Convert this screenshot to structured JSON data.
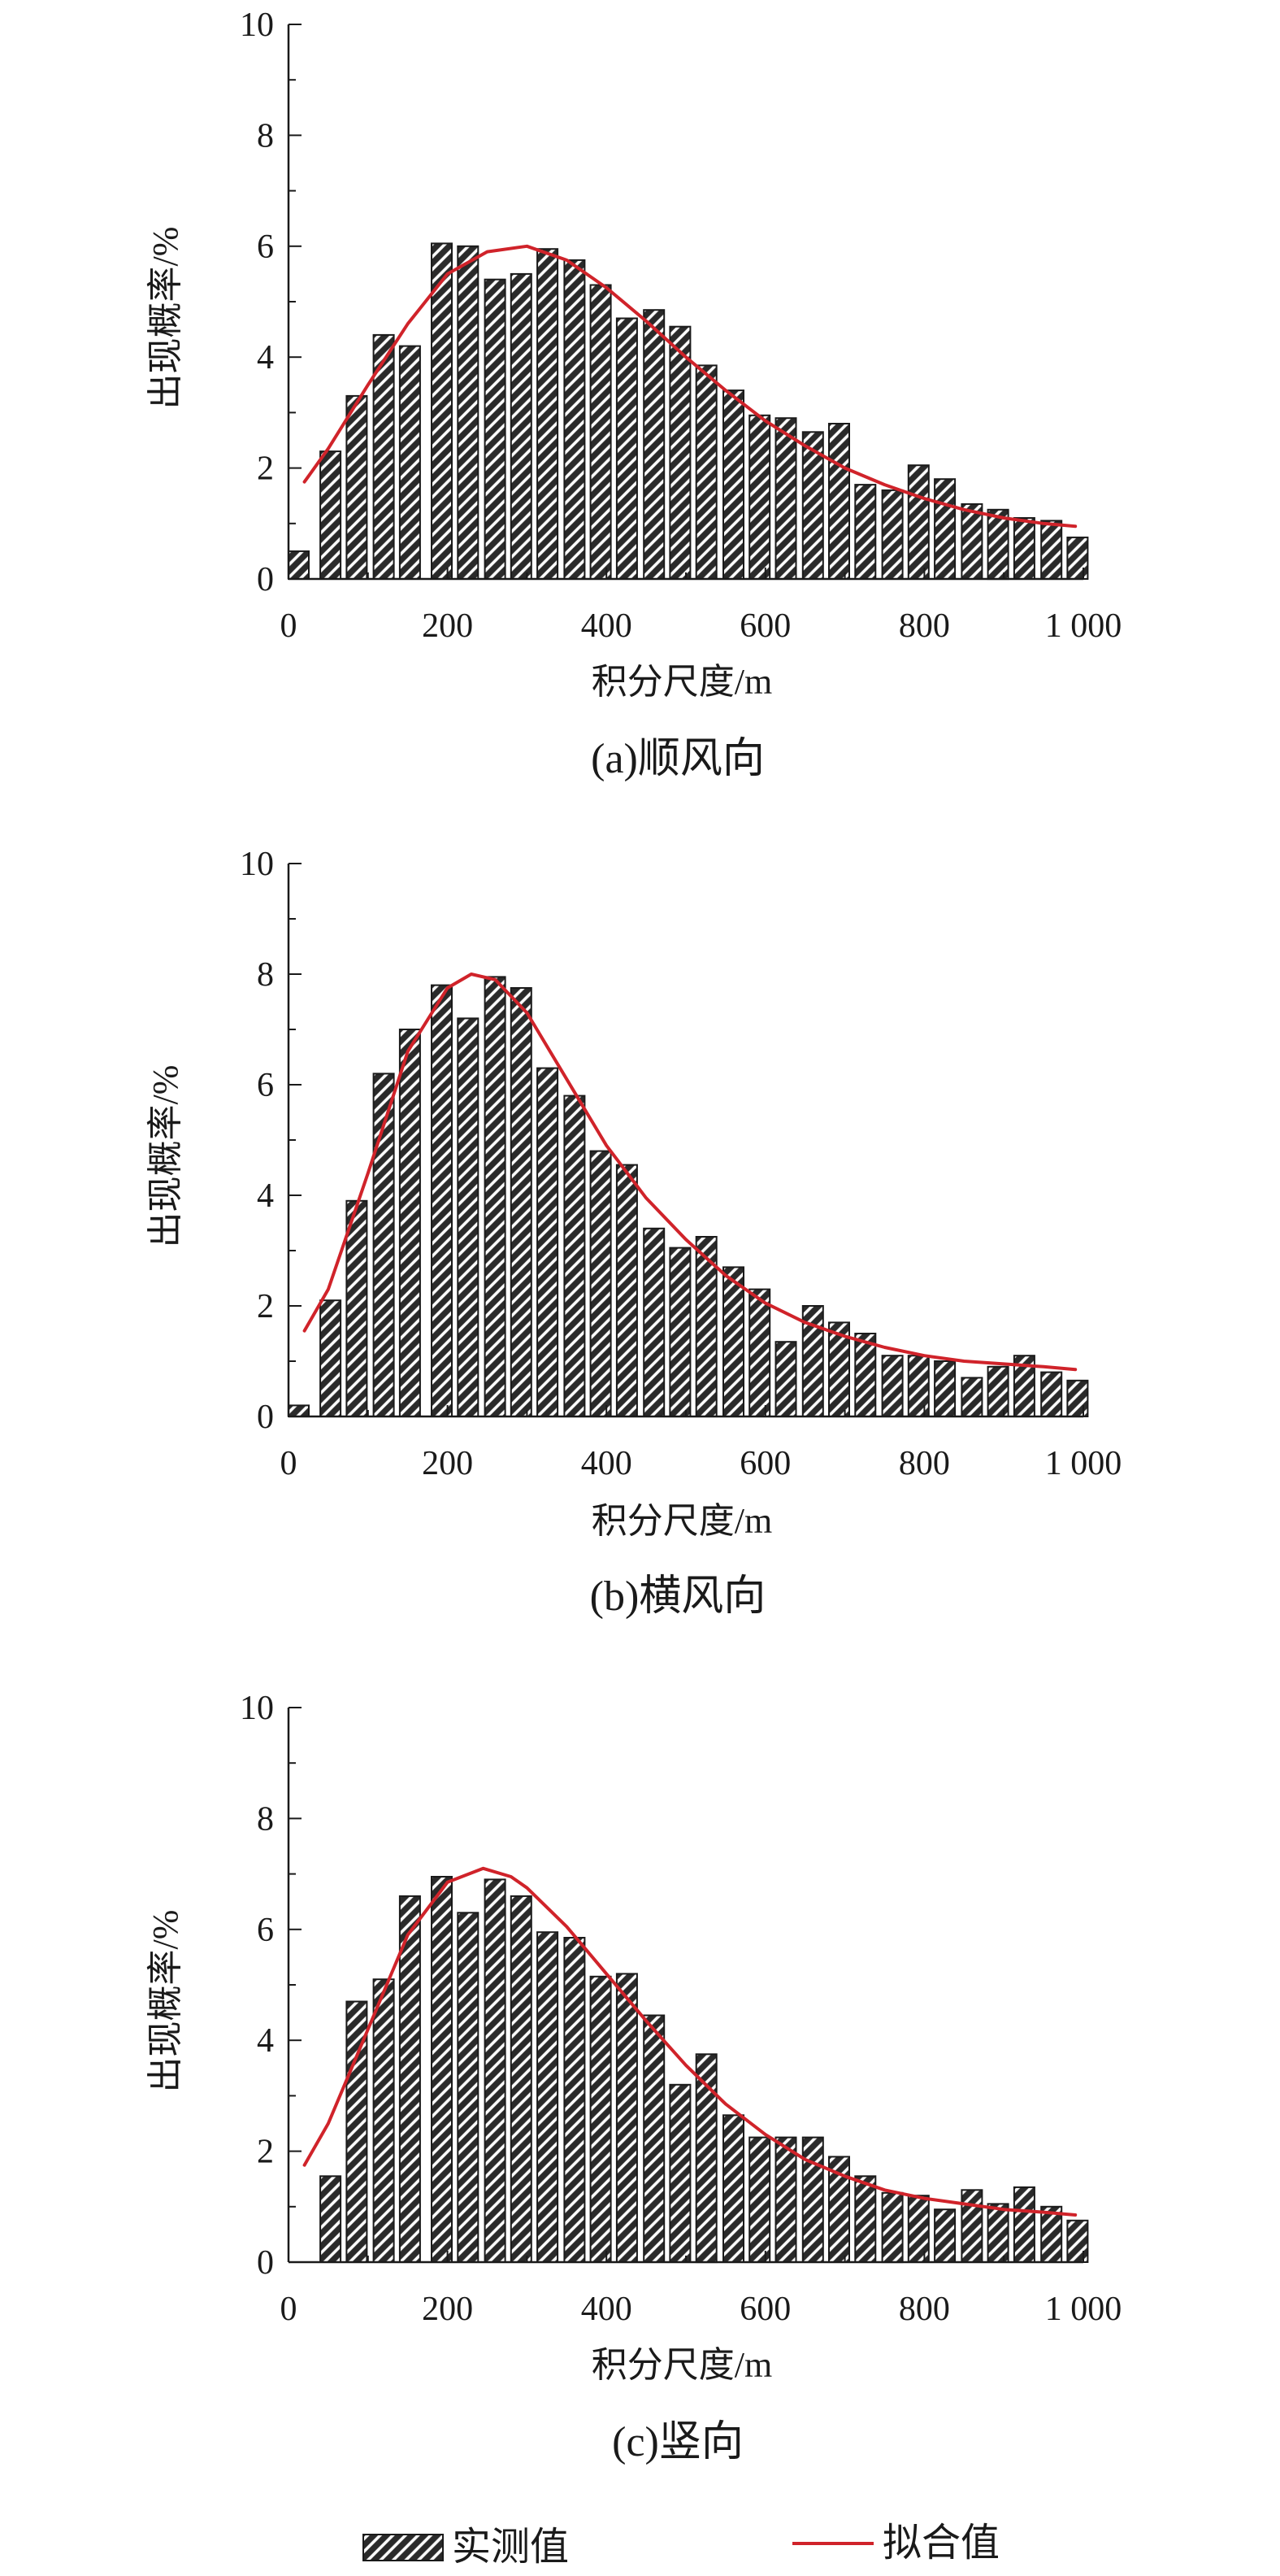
{
  "chart_data": [
    {
      "type": "bar",
      "caption": "(a)顺风向",
      "xlabel": "积分尺度/m",
      "ylabel": "出现概率/%",
      "xlim": [
        0,
        1000
      ],
      "ylim": [
        0,
        10
      ],
      "x_ticks": [
        "0",
        "200",
        "400",
        "600",
        "800",
        "1 000"
      ],
      "y_ticks": [
        "0",
        "2",
        "4",
        "6",
        "8",
        "10"
      ],
      "series": [
        {
          "name": "实测值",
          "x": [
            0,
            40,
            73,
            107,
            140,
            180,
            213,
            247,
            280,
            313,
            347,
            380,
            413,
            447,
            480,
            513,
            547,
            580,
            613,
            647,
            680,
            713,
            747,
            780,
            813,
            847,
            880,
            913,
            947,
            980
          ],
          "values": [
            0.5,
            2.3,
            3.3,
            4.4,
            4.2,
            6.05,
            6.0,
            5.4,
            5.5,
            5.95,
            5.75,
            5.3,
            4.7,
            4.85,
            4.55,
            3.85,
            3.4,
            2.95,
            2.9,
            2.65,
            2.8,
            1.7,
            1.6,
            2.05,
            1.8,
            1.35,
            1.25,
            1.1,
            1.05,
            0.75
          ]
        },
        {
          "name": "拟合值",
          "type": "line",
          "x": [
            20,
            50,
            100,
            150,
            200,
            250,
            300,
            350,
            400,
            450,
            500,
            550,
            600,
            650,
            700,
            750,
            800,
            850,
            900,
            950,
            990
          ],
          "values": [
            1.75,
            2.35,
            3.5,
            4.6,
            5.5,
            5.9,
            6.0,
            5.75,
            5.25,
            4.65,
            4.0,
            3.4,
            2.85,
            2.4,
            2.0,
            1.7,
            1.45,
            1.25,
            1.1,
            1.0,
            0.95
          ]
        }
      ]
    },
    {
      "type": "bar",
      "caption": "(b)横风向",
      "xlabel": "积分尺度/m",
      "ylabel": "出现概率/%",
      "xlim": [
        0,
        1000
      ],
      "ylim": [
        0,
        10
      ],
      "x_ticks": [
        "0",
        "200",
        "400",
        "600",
        "800",
        "1 000"
      ],
      "y_ticks": [
        "0",
        "2",
        "4",
        "6",
        "8",
        "10"
      ],
      "series": [
        {
          "name": "实测值",
          "x": [
            0,
            40,
            73,
            107,
            140,
            180,
            213,
            247,
            280,
            313,
            347,
            380,
            413,
            447,
            480,
            513,
            547,
            580,
            613,
            647,
            680,
            713,
            747,
            780,
            813,
            847,
            880,
            913,
            947,
            980
          ],
          "values": [
            0.2,
            2.1,
            3.9,
            6.2,
            7.0,
            7.8,
            7.2,
            7.95,
            7.75,
            6.3,
            5.8,
            4.8,
            4.55,
            3.4,
            3.05,
            3.25,
            2.7,
            2.3,
            1.35,
            2.0,
            1.7,
            1.5,
            1.1,
            1.1,
            1.0,
            0.7,
            0.9,
            1.1,
            0.8,
            0.65
          ]
        },
        {
          "name": "拟合值",
          "type": "line",
          "x": [
            20,
            50,
            100,
            150,
            200,
            230,
            260,
            300,
            350,
            400,
            450,
            500,
            550,
            600,
            650,
            700,
            750,
            800,
            850,
            900,
            950,
            990
          ],
          "values": [
            1.55,
            2.3,
            4.4,
            6.6,
            7.75,
            8.0,
            7.9,
            7.3,
            6.1,
            4.9,
            3.95,
            3.2,
            2.55,
            2.05,
            1.7,
            1.45,
            1.25,
            1.1,
            1.0,
            0.95,
            0.9,
            0.85
          ]
        }
      ]
    },
    {
      "type": "bar",
      "caption": "(c)竖向",
      "xlabel": "积分尺度/m",
      "ylabel": "出现概率/%",
      "xlim": [
        0,
        1000
      ],
      "ylim": [
        0,
        10
      ],
      "x_ticks": [
        "0",
        "200",
        "400",
        "600",
        "800",
        "1 000"
      ],
      "y_ticks": [
        "0",
        "2",
        "4",
        "6",
        "8",
        "10"
      ],
      "series": [
        {
          "name": "实测值",
          "x": [
            40,
            73,
            107,
            140,
            180,
            213,
            247,
            280,
            313,
            347,
            380,
            413,
            447,
            480,
            513,
            547,
            580,
            613,
            647,
            680,
            713,
            747,
            780,
            813,
            847,
            880,
            913,
            947,
            980
          ],
          "values": [
            1.55,
            4.7,
            5.1,
            6.6,
            6.95,
            6.3,
            6.9,
            6.6,
            5.95,
            5.85,
            5.15,
            5.2,
            4.45,
            3.2,
            3.75,
            2.65,
            2.25,
            2.25,
            2.25,
            1.9,
            1.55,
            1.25,
            1.2,
            0.95,
            1.3,
            1.05,
            1.35,
            1.0,
            0.75
          ]
        },
        {
          "name": "拟合值",
          "type": "line",
          "x": [
            20,
            50,
            100,
            150,
            200,
            245,
            280,
            300,
            350,
            400,
            450,
            500,
            550,
            600,
            650,
            700,
            750,
            800,
            850,
            900,
            950,
            990
          ],
          "values": [
            1.75,
            2.5,
            4.2,
            5.9,
            6.85,
            7.1,
            6.95,
            6.75,
            6.05,
            5.2,
            4.35,
            3.55,
            2.85,
            2.3,
            1.85,
            1.55,
            1.3,
            1.15,
            1.05,
            0.95,
            0.9,
            0.85
          ]
        }
      ]
    }
  ],
  "legend": {
    "bar_label": "实测值",
    "line_label": "拟合值"
  },
  "colors": {
    "bar_fill": "#2a2a2a",
    "bar_hatch": "#ffffff",
    "fit_line": "#d0232a",
    "axis": "#1a1a1a"
  }
}
